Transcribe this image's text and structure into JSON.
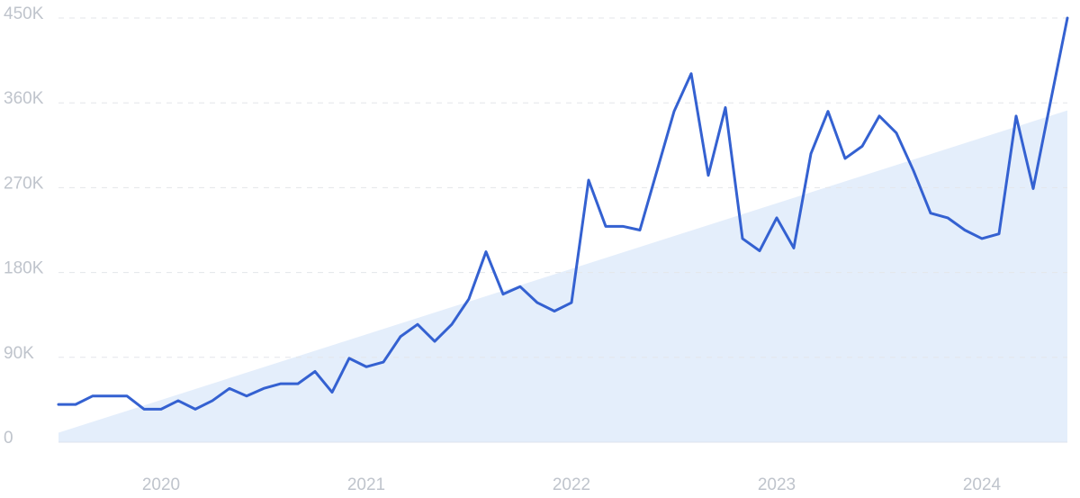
{
  "chart_data": {
    "type": "line",
    "categories": [
      null,
      null,
      null,
      null,
      null,
      null,
      "2020",
      null,
      null,
      null,
      null,
      null,
      null,
      null,
      null,
      null,
      null,
      null,
      "2021",
      null,
      null,
      null,
      null,
      null,
      null,
      null,
      null,
      null,
      null,
      null,
      "2022",
      null,
      null,
      null,
      null,
      null,
      null,
      null,
      null,
      null,
      null,
      null,
      "2023",
      null,
      null,
      null,
      null,
      null,
      null,
      null,
      null,
      null,
      null,
      null,
      "2024",
      null,
      null,
      null,
      null,
      null
    ],
    "series": [
      {
        "color": "#3461d1",
        "values": [
          40000,
          40000,
          49000,
          49000,
          49000,
          35000,
          35000,
          44000,
          35000,
          44000,
          57000,
          49000,
          57000,
          62000,
          62000,
          75000,
          53000,
          89000,
          80000,
          85000,
          112000,
          125000,
          107000,
          125000,
          152000,
          202000,
          157000,
          165000,
          148000,
          139000,
          148000,
          278000,
          229000,
          229000,
          225000,
          288000,
          351000,
          391000,
          283000,
          355000,
          216000,
          203000,
          238000,
          206000,
          306000,
          351000,
          301000,
          314000,
          346000,
          328000,
          288000,
          243000,
          238000,
          225000,
          216000,
          221000,
          346000,
          269000,
          360000,
          450000
        ]
      }
    ],
    "trend": {
      "color": "#e4eefb",
      "values": [
        10000,
        352000
      ]
    },
    "ylim": [
      0,
      450000
    ],
    "yticks": [
      0,
      {
        "value": 90000,
        "label": "90K"
      },
      {
        "value": 180000,
        "label": "180K"
      },
      {
        "value": 270000,
        "label": "270K"
      },
      {
        "value": 360000,
        "label": "360K"
      },
      {
        "value": 450000,
        "label": "450K"
      }
    ],
    "grid": true
  }
}
